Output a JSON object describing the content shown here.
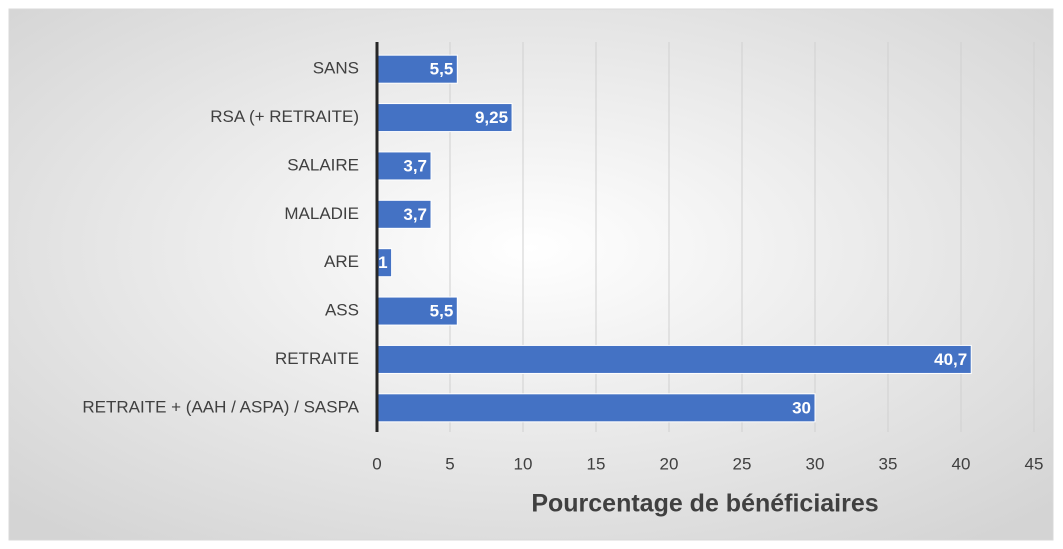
{
  "chart_data": {
    "type": "barh",
    "xlabel": "Pourcentage de bénéficiaires",
    "categories": [
      "SANS",
      "RSA (+ RETRAITE)",
      "SALAIRE",
      "MALADIE",
      "ARE",
      "ASS",
      "RETRAITE",
      "RETRAITE + (AAH / ASPA) / SASPA"
    ],
    "values": [
      5.5,
      9.25,
      3.7,
      3.7,
      1,
      5.5,
      40.7,
      30
    ],
    "value_labels": [
      "5,5",
      "9,25",
      "3,7",
      "3,7",
      "1",
      "5,5",
      "40,7",
      "30"
    ],
    "color": "#4472c4",
    "xlim": [
      0,
      45
    ],
    "xticks": [
      0,
      5,
      10,
      15,
      20,
      25,
      30,
      35,
      40,
      45
    ],
    "grid": true
  }
}
